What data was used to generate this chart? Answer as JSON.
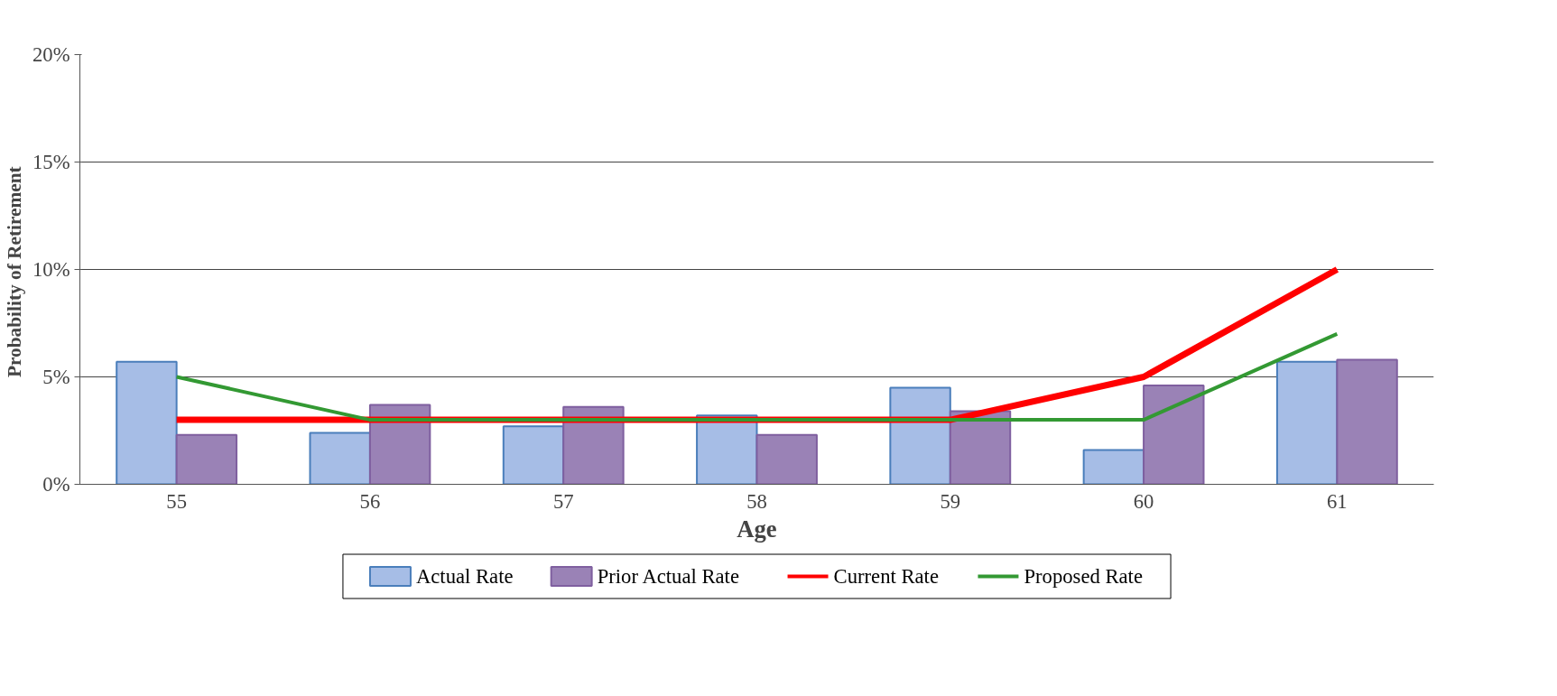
{
  "chart_data": {
    "type": "bar",
    "xlabel": "Age",
    "ylabel": "Probability  of Retirement",
    "categories": [
      "55",
      "56",
      "57",
      "58",
      "59",
      "60",
      "61"
    ],
    "series": [
      {
        "name": "Actual Rate",
        "color": "#a6bde6",
        "values": [
          5.7,
          2.4,
          2.7,
          3.2,
          4.5,
          1.6,
          5.7
        ]
      },
      {
        "name": "Prior Actual Rate",
        "color": "#9a82b6",
        "values": [
          2.3,
          3.7,
          3.6,
          2.3,
          3.4,
          4.6,
          5.8
        ]
      },
      {
        "name": "Current Rate",
        "type": "line",
        "color": "#ff0000",
        "values": [
          3,
          3,
          3,
          3,
          3,
          5,
          10
        ]
      },
      {
        "name": "Proposed Rate",
        "type": "line",
        "color": "#339933",
        "values": [
          5,
          3,
          3,
          3,
          3,
          3,
          7
        ]
      }
    ],
    "ylim": [
      0,
      20
    ],
    "yticks": [
      {
        "value": 0,
        "label": "0%"
      },
      {
        "value": 5,
        "label": "5%"
      },
      {
        "value": 10,
        "label": "10%"
      },
      {
        "value": 15,
        "label": "15%"
      },
      {
        "value": 20,
        "label": "20%"
      }
    ],
    "grid": "y",
    "legend": "bottom",
    "marker": "none",
    "line_style": "solid"
  }
}
